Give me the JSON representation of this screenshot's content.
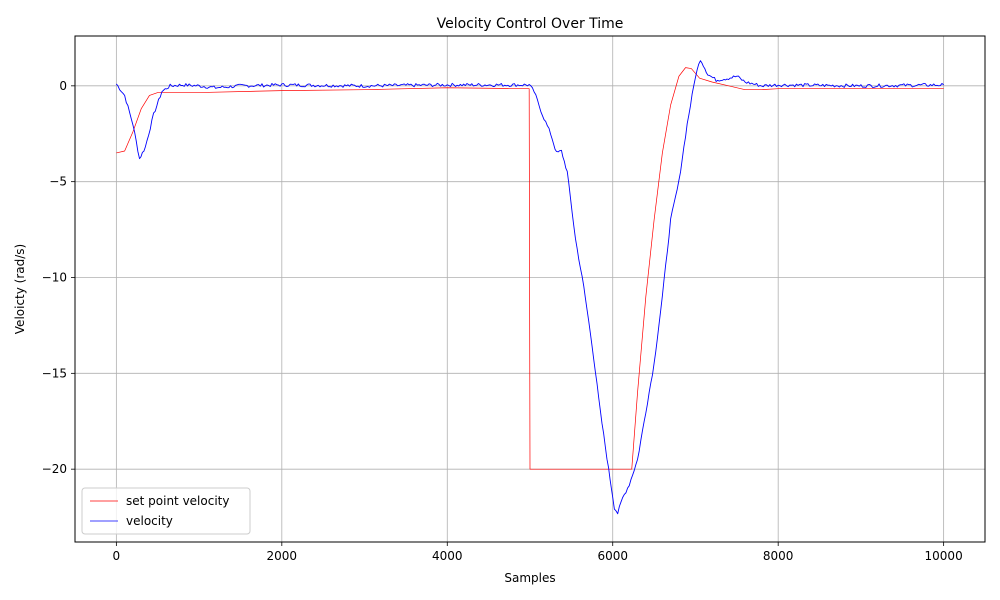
{
  "chart_data": {
    "type": "line",
    "title": "Velocity Control Over Time",
    "xlabel": "Samples",
    "ylabel": "Veloicty (rad/s)",
    "xlim": [
      -500,
      10500
    ],
    "ylim": [
      -23.8,
      2.6
    ],
    "xticks": [
      0,
      2000,
      4000,
      6000,
      8000,
      10000
    ],
    "xtick_labels": [
      "0",
      "2000",
      "4000",
      "6000",
      "8000",
      "10000"
    ],
    "yticks": [
      0,
      -5,
      -10,
      -15,
      -20
    ],
    "ytick_labels": [
      "0",
      "−5",
      "−10",
      "−15",
      "−20"
    ],
    "grid": true,
    "legend_position": "lower-left",
    "series": [
      {
        "name": "set point velocity",
        "color": "#ff0000",
        "points": [
          [
            0,
            -3.5
          ],
          [
            100,
            -3.4
          ],
          [
            200,
            -2.4
          ],
          [
            300,
            -1.2
          ],
          [
            400,
            -0.5
          ],
          [
            500,
            -0.35
          ],
          [
            1000,
            -0.35
          ],
          [
            2000,
            -0.25
          ],
          [
            3000,
            -0.2
          ],
          [
            4000,
            -0.1
          ],
          [
            4990,
            -0.15
          ],
          [
            5000,
            -20.0
          ],
          [
            6230,
            -20.0
          ],
          [
            6300,
            -16.0
          ],
          [
            6400,
            -11.0
          ],
          [
            6500,
            -7.0
          ],
          [
            6600,
            -3.5
          ],
          [
            6700,
            -1.0
          ],
          [
            6800,
            0.5
          ],
          [
            6880,
            0.95
          ],
          [
            6950,
            0.9
          ],
          [
            7050,
            0.4
          ],
          [
            7200,
            0.2
          ],
          [
            7400,
            0.0
          ],
          [
            7600,
            -0.2
          ],
          [
            7800,
            -0.2
          ],
          [
            8000,
            -0.15
          ],
          [
            9000,
            -0.15
          ],
          [
            10000,
            -0.15
          ]
        ]
      },
      {
        "name": "velocity",
        "color": "#0000ff",
        "points": [
          [
            0,
            0.1
          ],
          [
            100,
            -0.5
          ],
          [
            200,
            -2.0
          ],
          [
            280,
            -3.8
          ],
          [
            350,
            -3.2
          ],
          [
            450,
            -1.5
          ],
          [
            550,
            -0.3
          ],
          [
            650,
            0.0
          ],
          [
            800,
            0.05
          ],
          [
            1000,
            0.0
          ],
          [
            1200,
            -0.1
          ],
          [
            1500,
            0.0
          ],
          [
            2000,
            0.05
          ],
          [
            3000,
            0.0
          ],
          [
            4000,
            0.05
          ],
          [
            4990,
            0.05
          ],
          [
            5050,
            -0.3
          ],
          [
            5150,
            -1.5
          ],
          [
            5250,
            -2.5
          ],
          [
            5320,
            -3.5
          ],
          [
            5380,
            -3.4
          ],
          [
            5450,
            -4.5
          ],
          [
            5550,
            -8.0
          ],
          [
            5650,
            -10.5
          ],
          [
            5750,
            -13.5
          ],
          [
            5850,
            -17.0
          ],
          [
            5950,
            -20.0
          ],
          [
            6020,
            -22.0
          ],
          [
            6060,
            -22.3
          ],
          [
            6120,
            -21.5
          ],
          [
            6200,
            -20.8
          ],
          [
            6300,
            -19.5
          ],
          [
            6400,
            -17.0
          ],
          [
            6500,
            -14.5
          ],
          [
            6600,
            -11.0
          ],
          [
            6700,
            -7.0
          ],
          [
            6800,
            -5.0
          ],
          [
            6900,
            -2.0
          ],
          [
            7000,
            0.5
          ],
          [
            7060,
            1.4
          ],
          [
            7150,
            0.6
          ],
          [
            7250,
            0.3
          ],
          [
            7400,
            0.4
          ],
          [
            7500,
            0.5
          ],
          [
            7600,
            0.2
          ],
          [
            7800,
            0.0
          ],
          [
            8000,
            0.05
          ],
          [
            9000,
            0.0
          ],
          [
            10000,
            0.05
          ]
        ]
      }
    ]
  }
}
